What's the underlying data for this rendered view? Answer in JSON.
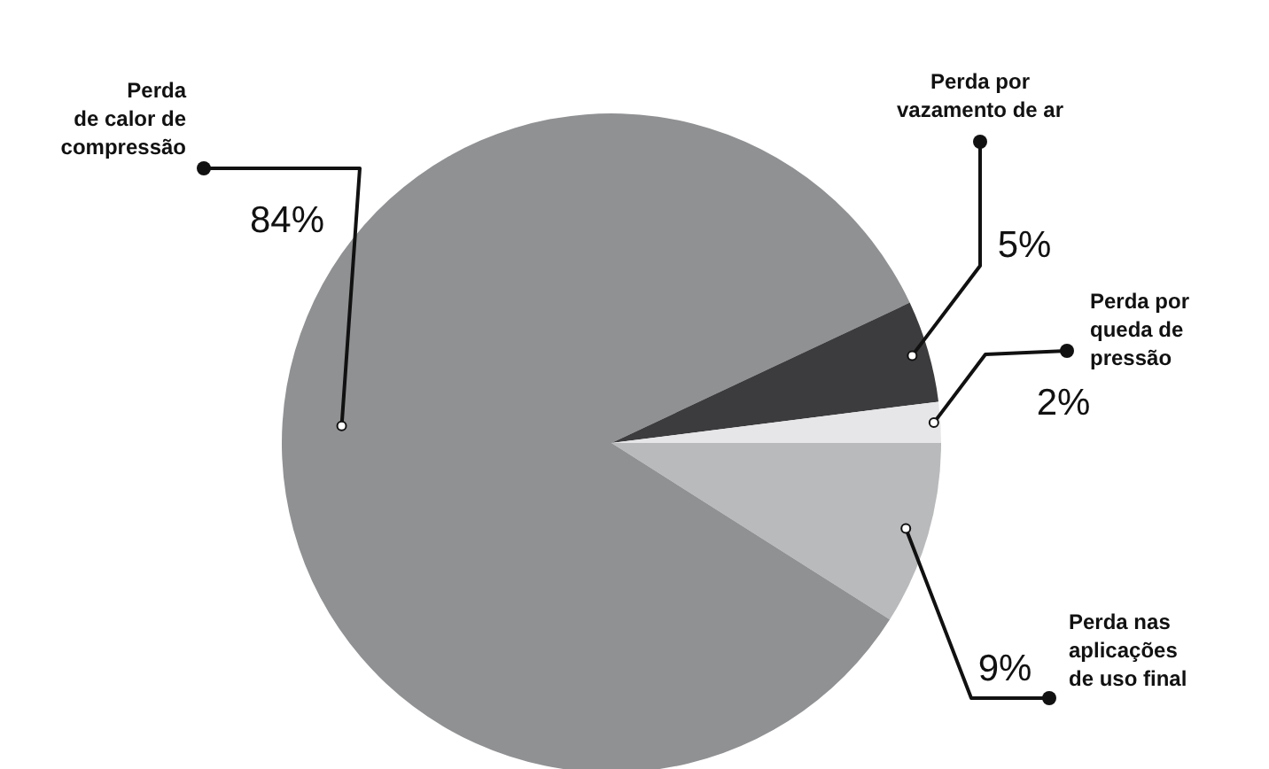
{
  "chart_data": {
    "type": "pie",
    "categories": [
      "Perda nas\naplicações\nde uso final",
      "Perda\nde calor de\ncompressão",
      "Perda por\nvazamento de ar",
      "Perda por\nqueda de\npressão"
    ],
    "values": [
      9,
      84,
      5,
      2
    ],
    "value_labels": [
      "9%",
      "84%",
      "5%",
      "2%"
    ],
    "colors": [
      "#b9babc",
      "#909193",
      "#3c3c3e",
      "#e6e6e8"
    ]
  }
}
